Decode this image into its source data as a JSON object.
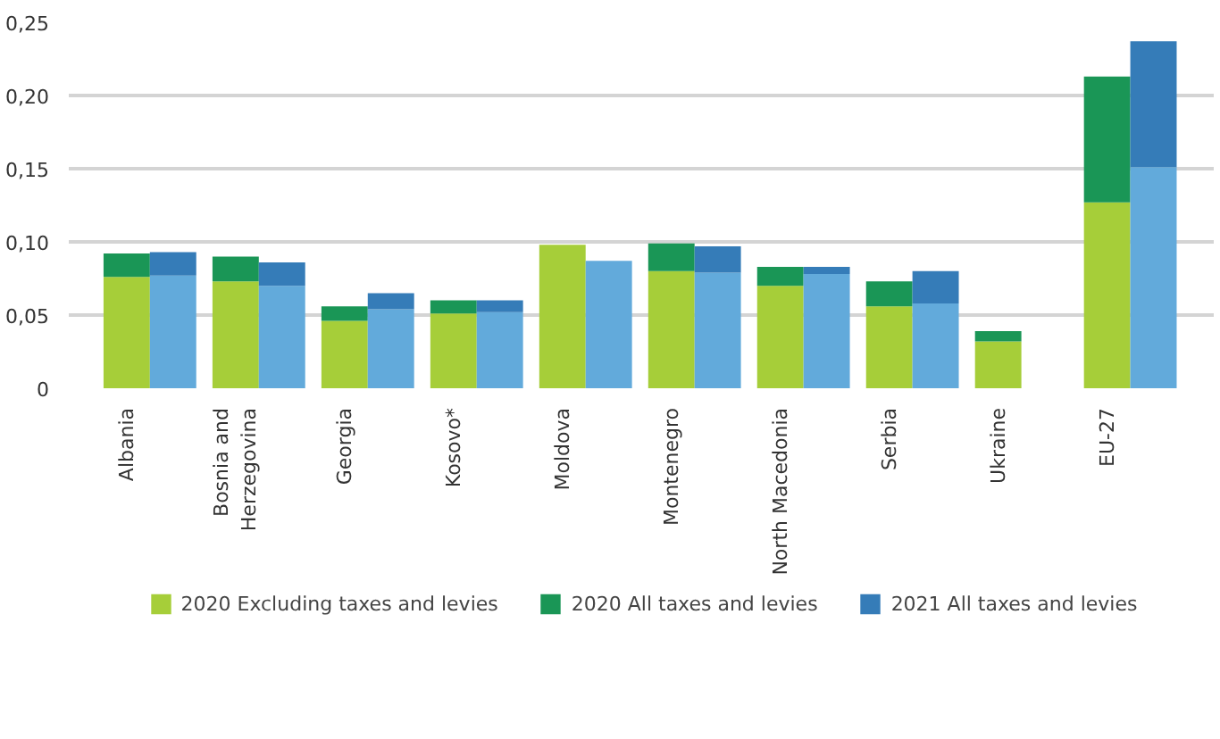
{
  "chart_data": {
    "type": "bar",
    "stacked": true,
    "categories": [
      "Albania",
      null,
      "Bosnia and\nHerzegovina",
      null,
      "Georgia",
      null,
      "Kosovo*",
      null,
      "Moldova",
      null,
      "Montenegro",
      null,
      "North Macedonia",
      null,
      "Serbia",
      null,
      "Ukraine",
      null,
      "EU-27",
      null
    ],
    "series": [
      {
        "name": "2020 Excluding taxes and levies",
        "color": "#a6ce39",
        "values": [
          0.076,
          null,
          0.073,
          null,
          0.046,
          null,
          0.051,
          null,
          0.098,
          null,
          0.08,
          null,
          0.07,
          null,
          0.056,
          null,
          0.032,
          null,
          0.127,
          null
        ]
      },
      {
        "name": "2020 All taxes and levies",
        "color": "#1a9656",
        "values": [
          0.016,
          null,
          0.017,
          null,
          0.01,
          null,
          0.009,
          null,
          null,
          null,
          0.019,
          null,
          0.013,
          null,
          0.017,
          null,
          0.007,
          null,
          0.086,
          null
        ]
      },
      {
        "color": "#62aadb",
        "values": [
          null,
          0.077,
          null,
          0.07,
          null,
          0.054,
          null,
          0.052,
          null,
          0.087,
          null,
          0.079,
          null,
          0.078,
          null,
          0.058,
          null,
          null,
          null,
          0.151
        ]
      },
      {
        "name": "2021 All taxes and levies",
        "color": "#357cb8",
        "values": [
          null,
          0.016,
          null,
          0.016,
          null,
          0.011,
          null,
          0.008,
          null,
          null,
          null,
          0.018,
          null,
          0.005,
          null,
          0.022,
          null,
          null,
          null,
          0.086
        ]
      }
    ],
    "ylim": [
      0,
      0.25
    ],
    "yticks": [
      0,
      {
        "value": 0.05,
        "label": "0,05"
      },
      {
        "value": 0.1,
        "label": "0,10"
      },
      {
        "value": 0.15,
        "label": "0,15"
      },
      {
        "value": 0.2,
        "label": "0,20"
      },
      {
        "value": 0.25,
        "label": "0,25"
      }
    ],
    "grid": "y",
    "legend": "bottom"
  }
}
